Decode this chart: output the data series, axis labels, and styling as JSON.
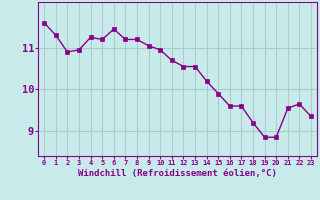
{
  "x": [
    0,
    1,
    2,
    3,
    4,
    5,
    6,
    7,
    8,
    9,
    10,
    11,
    12,
    13,
    14,
    15,
    16,
    17,
    18,
    19,
    20,
    21,
    22,
    23
  ],
  "y": [
    11.6,
    11.3,
    10.9,
    10.95,
    11.25,
    11.2,
    11.45,
    11.2,
    11.2,
    11.05,
    10.95,
    10.7,
    10.55,
    10.55,
    10.2,
    9.9,
    9.6,
    9.6,
    9.2,
    8.85,
    8.85,
    9.55,
    9.65,
    9.35
  ],
  "line_color": "#880088",
  "marker": "s",
  "marker_size": 2.2,
  "bg_color": "#c8eaea",
  "grid_color": "#aacccc",
  "xlabel": "Windchill (Refroidissement éolien,°C)",
  "xlabel_color": "#880088",
  "tick_color": "#880088",
  "yticks": [
    9,
    10,
    11
  ],
  "ylim": [
    8.4,
    12.1
  ],
  "xlim": [
    -0.5,
    23.5
  ]
}
